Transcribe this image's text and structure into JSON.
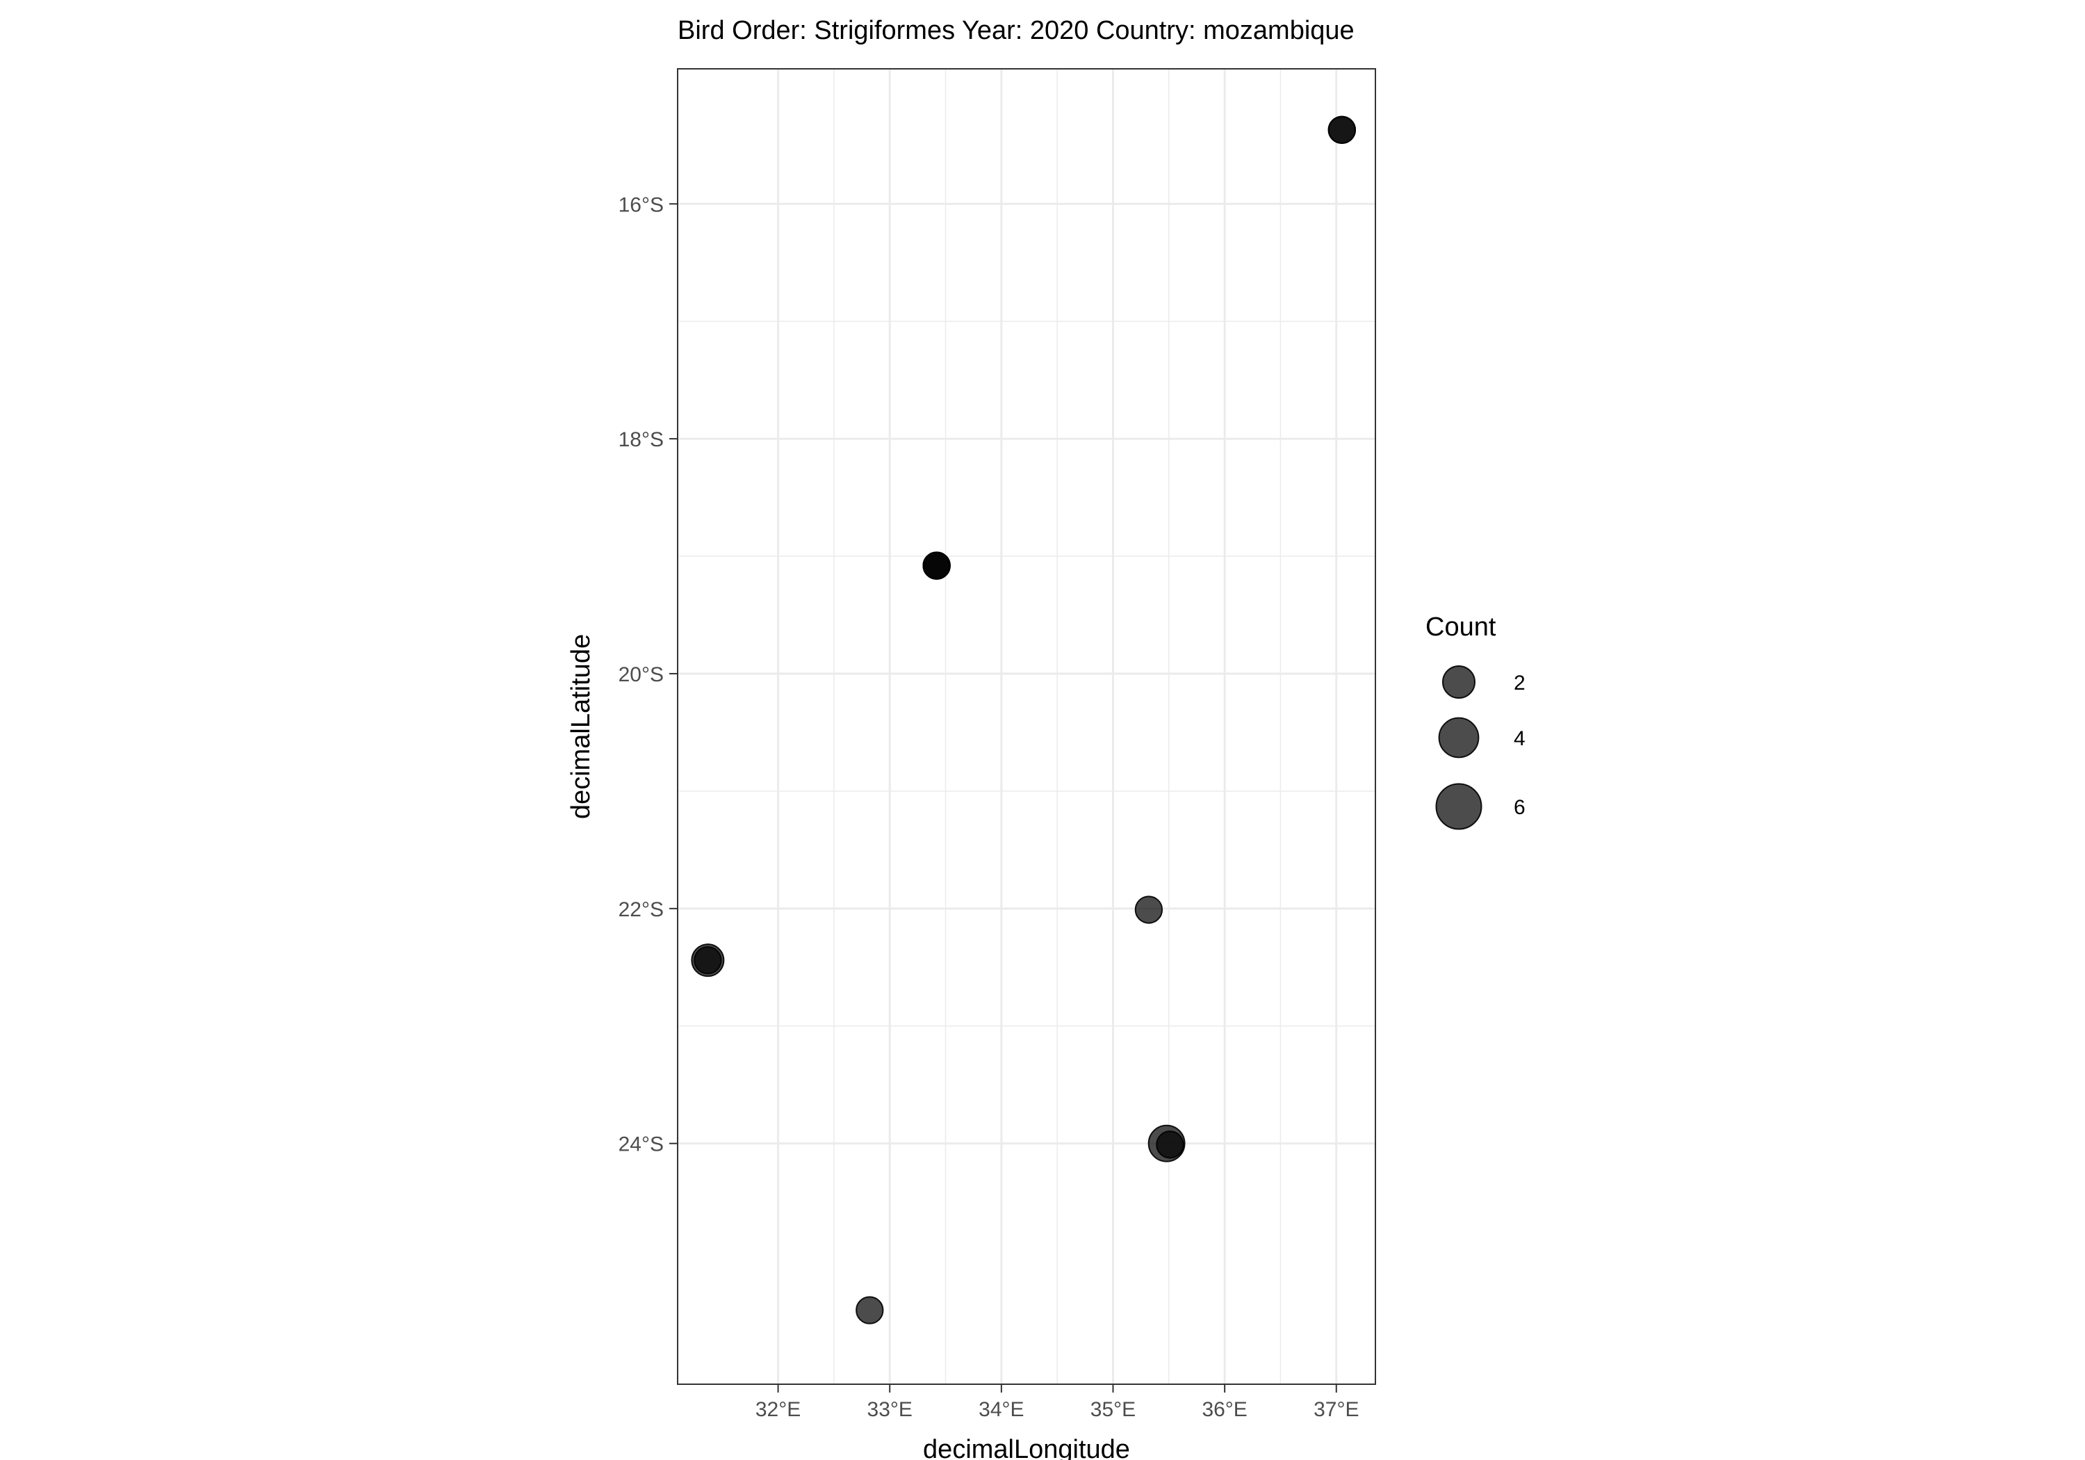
{
  "chart_data": {
    "type": "scatter",
    "title": "Bird Order: Strigiformes Year: 2020 Country: mozambique",
    "xlabel": "decimalLongitude",
    "ylabel": "decimalLatitude",
    "xlim": [
      31.1,
      37.35
    ],
    "ylim": [
      -26.05,
      -14.85
    ],
    "x_ticks": [
      {
        "value": 32,
        "label": "32°E"
      },
      {
        "value": 33,
        "label": "33°E"
      },
      {
        "value": 34,
        "label": "34°E"
      },
      {
        "value": 35,
        "label": "35°E"
      },
      {
        "value": 36,
        "label": "36°E"
      },
      {
        "value": 37,
        "label": "37°E"
      }
    ],
    "y_ticks": [
      {
        "value": -16,
        "label": "16°S"
      },
      {
        "value": -18,
        "label": "18°S"
      },
      {
        "value": -20,
        "label": "20°S"
      },
      {
        "value": -22,
        "label": "22°S"
      },
      {
        "value": -24,
        "label": "24°S"
      }
    ],
    "grid": true,
    "point_color": "#000000",
    "point_alpha": 0.7,
    "points": [
      {
        "x": 37.05,
        "y": -15.37,
        "count": 1
      },
      {
        "x": 37.05,
        "y": -15.37,
        "count": 1
      },
      {
        "x": 33.42,
        "y": -19.08,
        "count": 1
      },
      {
        "x": 33.42,
        "y": -19.08,
        "count": 1
      },
      {
        "x": 33.42,
        "y": -19.08,
        "count": 1
      },
      {
        "x": 35.32,
        "y": -22.01,
        "count": 1
      },
      {
        "x": 31.37,
        "y": -22.44,
        "count": 2
      },
      {
        "x": 31.37,
        "y": -22.44,
        "count": 1
      },
      {
        "x": 35.48,
        "y": -24.0,
        "count": 3
      },
      {
        "x": 35.51,
        "y": -24.01,
        "count": 1
      },
      {
        "x": 32.82,
        "y": -25.42,
        "count": 1
      }
    ],
    "legend": {
      "title": "Count",
      "position": "right",
      "entries": [
        {
          "count": 2,
          "label": "2"
        },
        {
          "count": 4,
          "label": "4"
        },
        {
          "count": 6,
          "label": "6"
        }
      ]
    }
  }
}
